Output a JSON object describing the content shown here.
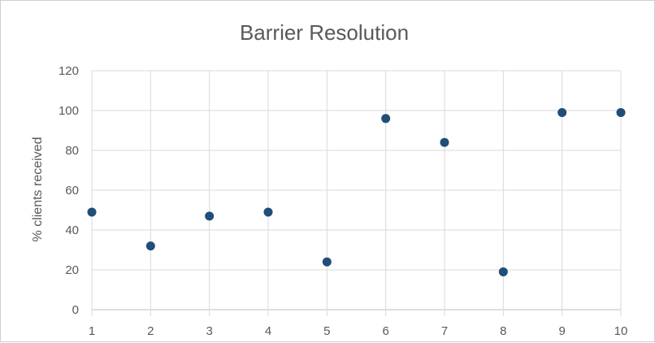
{
  "chart_data": {
    "type": "scatter",
    "title": "Barrier Resolution",
    "xlabel": "",
    "ylabel": "% clients received",
    "x": [
      1,
      2,
      3,
      4,
      5,
      6,
      7,
      8,
      9,
      10
    ],
    "y": [
      49,
      32,
      47,
      49,
      24,
      96,
      84,
      19,
      99,
      99
    ],
    "xlim": [
      1,
      10
    ],
    "ylim": [
      0,
      120
    ],
    "x_ticks": [
      "1",
      "2",
      "3",
      "4",
      "5",
      "6",
      "7",
      "8",
      "9",
      "10"
    ],
    "y_ticks": [
      "0",
      "20",
      "40",
      "60",
      "80",
      "100",
      "120"
    ],
    "grid": true,
    "legend": "none",
    "marker_color": "#1f4e79"
  }
}
